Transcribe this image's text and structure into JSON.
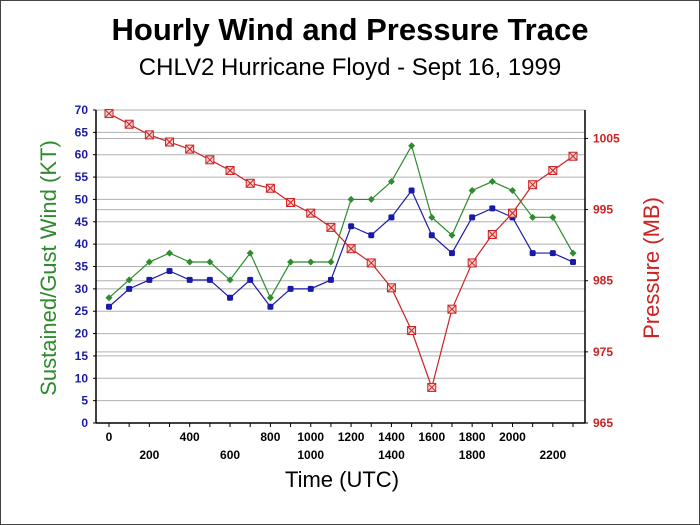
{
  "chart_data": {
    "type": "line",
    "title": "Hourly Wind and Pressure Trace",
    "subtitle": "CHLV2 Hurricane Floyd - Sept 16, 1999",
    "xlabel": "Time (UTC)",
    "ylabel_left": "Sustained/Gust Wind (KT)",
    "ylabel_right": "Pressure (MB)",
    "x": [
      0,
      100,
      200,
      300,
      400,
      500,
      600,
      700,
      800,
      900,
      1000,
      1100,
      1200,
      1300,
      1400,
      1500,
      1600,
      1700,
      1800,
      1900,
      2000,
      2100,
      2200,
      2300
    ],
    "x_ticks_row1": [
      "0",
      "400",
      "800",
      "1000",
      "1200",
      "1400",
      "1600",
      "1800",
      "2000"
    ],
    "x_ticks_row1_values": [
      0,
      400,
      800,
      1000,
      1200,
      1400,
      1600,
      1800,
      2000
    ],
    "x_ticks_row2": [
      "200",
      "600",
      "1000",
      "1400",
      "1800",
      "2200"
    ],
    "x_ticks_row2_values": [
      200,
      600,
      1000,
      1400,
      1800,
      2200
    ],
    "xlim": [
      0,
      2300
    ],
    "ylim_left": [
      0,
      70
    ],
    "ylim_right": [
      965,
      1009
    ],
    "left_ticks": [
      "0",
      "5",
      "10",
      "15",
      "20",
      "25",
      "30",
      "35",
      "40",
      "45",
      "50",
      "55",
      "60",
      "65",
      "70"
    ],
    "right_ticks": [
      "965",
      "975",
      "985",
      "995",
      "1005"
    ],
    "grid": true,
    "series": [
      {
        "name": "Gust Wind",
        "axis": "left",
        "color": "#2e8b2e",
        "marker": "diamond",
        "values": [
          28,
          32,
          36,
          38,
          36,
          36,
          32,
          38,
          28,
          36,
          36,
          36,
          50,
          50,
          54,
          62,
          46,
          42,
          52,
          54,
          52,
          46,
          46,
          38
        ]
      },
      {
        "name": "Sustained Wind",
        "axis": "left",
        "color": "#1a1aa8",
        "marker": "square",
        "values": [
          26,
          30,
          32,
          34,
          32,
          32,
          28,
          32,
          26,
          30,
          30,
          32,
          44,
          42,
          46,
          52,
          42,
          38,
          46,
          48,
          46,
          38,
          38,
          36
        ]
      },
      {
        "name": "Pressure",
        "axis": "right",
        "color": "#cc2222",
        "marker": "crossed-square",
        "values": [
          1008.5,
          1007,
          1005.5,
          1004.5,
          1003.5,
          1002,
          1000.5,
          998.7,
          998,
          996,
          994.5,
          992.5,
          989.5,
          987.5,
          984,
          978,
          970,
          981,
          987.5,
          991.5,
          994.5,
          998.5,
          1000.5,
          1002.5
        ]
      }
    ]
  },
  "colors": {
    "gust": "#2e8b2e",
    "sustained": "#1a1aa8",
    "pressure": "#cc2222",
    "grid": "#b0b0b0"
  }
}
